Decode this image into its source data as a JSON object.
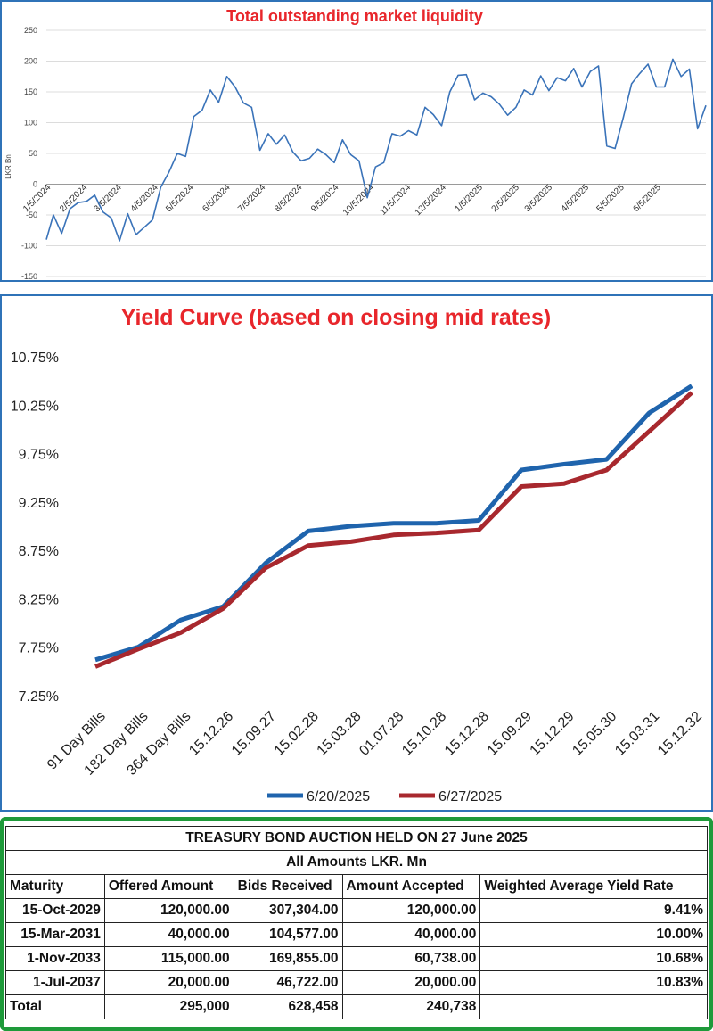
{
  "chart_data": [
    {
      "type": "line",
      "title": "Total outstanding market liquidity",
      "ylabel": "LKR Bn",
      "ylim": [
        -150,
        250
      ],
      "yticks": [
        250,
        200,
        150,
        100,
        50,
        0,
        -50,
        -100,
        -150
      ],
      "x_tick_labels": [
        "1/5/2024",
        "2/5/2024",
        "3/5/2024",
        "4/5/2024",
        "5/5/2024",
        "6/5/2024",
        "7/5/2024",
        "8/5/2024",
        "9/5/2024",
        "10/5/2024",
        "11/5/2024",
        "12/5/2024",
        "1/5/2025",
        "2/5/2025",
        "3/5/2025",
        "4/5/2025",
        "5/5/2025",
        "6/5/2025"
      ],
      "grid": true,
      "series": [
        {
          "color": "#3a73b9",
          "points": [
            [
              "2024-01-01",
              -90
            ],
            [
              "2024-01-07",
              -50
            ],
            [
              "2024-01-14",
              -80
            ],
            [
              "2024-01-21",
              -40
            ],
            [
              "2024-01-28",
              -30
            ],
            [
              "2024-02-04",
              -28
            ],
            [
              "2024-02-11",
              -18
            ],
            [
              "2024-02-18",
              -45
            ],
            [
              "2024-02-25",
              -55
            ],
            [
              "2024-03-03",
              -92
            ],
            [
              "2024-03-10",
              -48
            ],
            [
              "2024-03-17",
              -82
            ],
            [
              "2024-03-24",
              -70
            ],
            [
              "2024-03-31",
              -58
            ],
            [
              "2024-04-07",
              -5
            ],
            [
              "2024-04-14",
              20
            ],
            [
              "2024-04-21",
              50
            ],
            [
              "2024-04-28",
              45
            ],
            [
              "2024-05-05",
              110
            ],
            [
              "2024-05-12",
              120
            ],
            [
              "2024-05-19",
              153
            ],
            [
              "2024-05-26",
              133
            ],
            [
              "2024-06-02",
              175
            ],
            [
              "2024-06-09",
              158
            ],
            [
              "2024-06-16",
              132
            ],
            [
              "2024-06-23",
              125
            ],
            [
              "2024-06-30",
              55
            ],
            [
              "2024-07-07",
              82
            ],
            [
              "2024-07-14",
              65
            ],
            [
              "2024-07-21",
              80
            ],
            [
              "2024-07-28",
              52
            ],
            [
              "2024-08-04",
              38
            ],
            [
              "2024-08-11",
              42
            ],
            [
              "2024-08-18",
              57
            ],
            [
              "2024-08-25",
              48
            ],
            [
              "2024-09-01",
              35
            ],
            [
              "2024-09-08",
              72
            ],
            [
              "2024-09-15",
              48
            ],
            [
              "2024-09-22",
              38
            ],
            [
              "2024-09-29",
              -22
            ],
            [
              "2024-10-06",
              28
            ],
            [
              "2024-10-13",
              35
            ],
            [
              "2024-10-20",
              82
            ],
            [
              "2024-10-27",
              78
            ],
            [
              "2024-11-03",
              87
            ],
            [
              "2024-11-10",
              80
            ],
            [
              "2024-11-17",
              125
            ],
            [
              "2024-11-24",
              113
            ],
            [
              "2024-12-01",
              95
            ],
            [
              "2024-12-08",
              150
            ],
            [
              "2024-12-15",
              177
            ],
            [
              "2024-12-22",
              178
            ],
            [
              "2024-12-29",
              137
            ],
            [
              "2025-01-05",
              148
            ],
            [
              "2025-01-12",
              142
            ],
            [
              "2025-01-19",
              130
            ],
            [
              "2025-01-26",
              112
            ],
            [
              "2025-02-02",
              125
            ],
            [
              "2025-02-09",
              153
            ],
            [
              "2025-02-16",
              145
            ],
            [
              "2025-02-23",
              176
            ],
            [
              "2025-03-02",
              152
            ],
            [
              "2025-03-09",
              173
            ],
            [
              "2025-03-16",
              168
            ],
            [
              "2025-03-23",
              188
            ],
            [
              "2025-03-30",
              158
            ],
            [
              "2025-04-06",
              183
            ],
            [
              "2025-04-13",
              192
            ],
            [
              "2025-04-20",
              62
            ],
            [
              "2025-04-27",
              58
            ],
            [
              "2025-05-04",
              108
            ],
            [
              "2025-05-11",
              163
            ],
            [
              "2025-05-18",
              180
            ],
            [
              "2025-05-25",
              195
            ],
            [
              "2025-06-01",
              158
            ],
            [
              "2025-06-08",
              158
            ],
            [
              "2025-06-15",
              203
            ],
            [
              "2025-06-22",
              175
            ],
            [
              "2025-06-29",
              187
            ],
            [
              "2025-07-06",
              90
            ],
            [
              "2025-07-13",
              128
            ]
          ]
        }
      ]
    },
    {
      "type": "line",
      "title": "Yield Curve (based on closing mid rates)",
      "categories": [
        "91 Day Bills",
        "182 Day Bills",
        "364 Day Bills",
        "15.12.26",
        "15.09.27",
        "15.02.28",
        "15.03.28",
        "01.07.28",
        "15.10.28",
        "15.12.28",
        "15.09.29",
        "15.12.29",
        "15.05.30",
        "15.03.31",
        "15.12.32"
      ],
      "ylim": [
        7.25,
        10.75
      ],
      "yticks": [
        "10.75%",
        "10.25%",
        "9.75%",
        "9.25%",
        "8.75%",
        "8.25%",
        "7.75%",
        "7.25%"
      ],
      "legend_position": "bottom",
      "series": [
        {
          "name": "6/20/2025",
          "color": "#1f64ad",
          "values": [
            7.62,
            7.75,
            8.03,
            8.17,
            8.62,
            8.95,
            9.0,
            9.03,
            9.03,
            9.06,
            9.58,
            9.64,
            9.69,
            10.17,
            10.45
          ]
        },
        {
          "name": "6/27/2025",
          "color": "#a8282e",
          "values": [
            7.55,
            7.73,
            7.9,
            8.15,
            8.57,
            8.8,
            8.84,
            8.91,
            8.93,
            8.96,
            9.41,
            9.44,
            9.58,
            9.98,
            10.38
          ]
        }
      ]
    }
  ],
  "auction": {
    "title": "TREASURY BOND AUCTION HELD ON 27 June 2025",
    "subtitle": "All Amounts LKR. Mn",
    "headers": [
      "Maturity",
      "Offered Amount",
      "Bids Received",
      "Amount Accepted",
      "Weighted Average Yield Rate"
    ],
    "rows": [
      [
        "15-Oct-2029",
        "120,000.00",
        "307,304.00",
        "120,000.00",
        "9.41%"
      ],
      [
        "15-Mar-2031",
        "40,000.00",
        "104,577.00",
        "40,000.00",
        "10.00%"
      ],
      [
        "1-Nov-2033",
        "115,000.00",
        "169,855.00",
        "60,738.00",
        "10.68%"
      ],
      [
        "1-Jul-2037",
        "20,000.00",
        "46,722.00",
        "20,000.00",
        "10.83%"
      ]
    ],
    "total": [
      "Total",
      "295,000",
      "628,458",
      "240,738",
      ""
    ]
  }
}
